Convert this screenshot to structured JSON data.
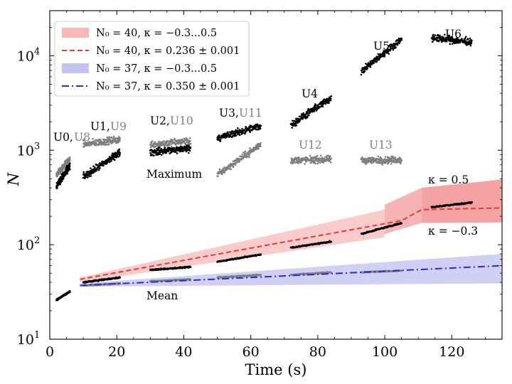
{
  "chart_data": {
    "type": "scatter",
    "xlabel": "Time (s)",
    "ylabel": "N",
    "xlim": [
      0,
      135
    ],
    "ylim": [
      10,
      30000
    ],
    "yscale": "log",
    "x_ticks": [
      0,
      20,
      40,
      60,
      80,
      100,
      120
    ],
    "y_ticks": [
      {
        "value": 10,
        "base": "10",
        "exp": "1"
      },
      {
        "value": 100,
        "base": "10",
        "exp": "2"
      },
      {
        "value": 1000,
        "base": "10",
        "exp": "3"
      },
      {
        "value": 10000,
        "base": "10",
        "exp": "4"
      }
    ],
    "grid": false,
    "legend_position": "top-left",
    "legend": [
      {
        "kind": "band",
        "color": "#f5a0a0",
        "text": "N₀ = 40,  κ = −0.3...0.5"
      },
      {
        "kind": "dashed",
        "color": "#e53935",
        "text": "N₀ = 40,  κ = 0.236 ± 0.001"
      },
      {
        "kind": "band",
        "color": "#b0b0ee",
        "text": "N₀ = 37,  κ = −0.3...0.5"
      },
      {
        "kind": "dashdot",
        "color": "#2a2ad0",
        "text": "N₀ = 37,  κ = 0.350 ± 0.001"
      }
    ],
    "colors": {
      "maximum_points": "#000000",
      "mean_points": "#7f7f7f",
      "fit_red": "#e53935",
      "fit_blue": "#2a2ad0",
      "band_red": "#f5a0a0",
      "band_blue": "#b0b0ee"
    },
    "maximum_series": [
      {
        "label": "U0",
        "x": [
          2,
          6
        ],
        "y": [
          420,
          680
        ]
      },
      {
        "label": "U1",
        "x": [
          10,
          21
        ],
        "y": [
          520,
          950
        ]
      },
      {
        "label": "U2",
        "x": [
          30,
          42
        ],
        "y": [
          950,
          1050
        ]
      },
      {
        "label": "U3",
        "x": [
          50,
          63
        ],
        "y": [
          1350,
          1800
        ]
      },
      {
        "label": "U4",
        "x": [
          72,
          84
        ],
        "y": [
          1850,
          3600
        ]
      },
      {
        "label": "U5",
        "x": [
          93,
          105
        ],
        "y": [
          6800,
          15000
        ]
      },
      {
        "label": "U6",
        "x": [
          114,
          126
        ],
        "y": [
          15500,
          14000
        ]
      }
    ],
    "maximum_grey_series": [
      {
        "label": "U8",
        "x": [
          2,
          6
        ],
        "y": [
          550,
          800
        ]
      },
      {
        "label": "U9",
        "x": [
          10,
          21
        ],
        "y": [
          1150,
          1300
        ]
      },
      {
        "label": "U10",
        "x": [
          30,
          42
        ],
        "y": [
          1150,
          1250
        ]
      },
      {
        "label": "U11",
        "x": [
          50,
          63
        ],
        "y": [
          550,
          1150
        ]
      },
      {
        "label": "U12",
        "x": [
          72,
          84
        ],
        "y": [
          780,
          800
        ]
      },
      {
        "label": "U13",
        "x": [
          93,
          105
        ],
        "y": [
          780,
          790
        ]
      }
    ],
    "mean_black_series": [
      {
        "x": [
          2,
          6
        ],
        "y": [
          26,
          32
        ]
      },
      {
        "x": [
          10,
          21
        ],
        "y": [
          40,
          45
        ]
      },
      {
        "x": [
          30,
          42
        ],
        "y": [
          54,
          58
        ]
      },
      {
        "x": [
          50,
          63
        ],
        "y": [
          66,
          79
        ]
      },
      {
        "x": [
          72,
          84
        ],
        "y": [
          93,
          108
        ]
      },
      {
        "x": [
          93,
          105
        ],
        "y": [
          130,
          170
        ]
      },
      {
        "x": [
          114,
          126
        ],
        "y": [
          250,
          280
        ]
      }
    ],
    "mean_grey_series": [
      {
        "x": [
          10,
          21
        ],
        "y": [
          37,
          39
        ]
      },
      {
        "x": [
          30,
          42
        ],
        "y": [
          41,
          43
        ]
      },
      {
        "x": [
          50,
          63
        ],
        "y": [
          45,
          48
        ]
      },
      {
        "x": [
          72,
          84
        ],
        "y": [
          48,
          51
        ]
      },
      {
        "x": [
          93,
          105
        ],
        "y": [
          51,
          53
        ]
      }
    ],
    "red_fit": {
      "x": [
        9,
        105,
        111,
        135
      ],
      "y": [
        43,
        180,
        235,
        245
      ]
    },
    "blue_fit": {
      "x": [
        9,
        135
      ],
      "y": [
        37,
        60
      ]
    },
    "red_band": {
      "x": [
        9,
        100,
        100,
        111,
        111,
        135
      ],
      "upper": [
        45,
        235,
        265,
        400,
        400,
        490
      ],
      "lower": [
        40,
        120,
        130,
        170,
        170,
        172
      ]
    },
    "blue_band": {
      "x": [
        9,
        135
      ],
      "upper": [
        39,
        80
      ],
      "lower": [
        36,
        39
      ]
    },
    "annotations": {
      "U0": "U0,",
      "U8": "U8",
      "U1": "U1,",
      "U9": "U9",
      "U2": "U2,",
      "U10": "U10",
      "U3": "U3,",
      "U11": "U11",
      "U4": "U4",
      "U5": "U5",
      "U6": "U6",
      "U12": "U12",
      "U13": "U13",
      "maximum": "Maximum",
      "mean": "Mean",
      "kappa_high": "κ = 0.5",
      "kappa_low": "κ = −0.3"
    }
  }
}
